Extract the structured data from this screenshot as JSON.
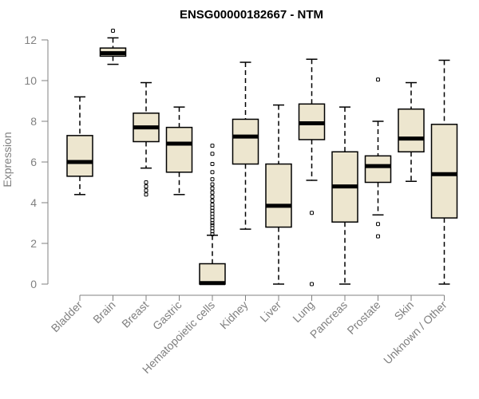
{
  "chart_data": {
    "type": "boxplot",
    "title": "ENSG00000182667 - NTM",
    "xlabel": "",
    "ylabel": "Expression",
    "ylim": [
      0,
      12.3
    ],
    "yticks": [
      "0",
      "2",
      "4",
      "6",
      "8",
      "10",
      "12"
    ],
    "colors": {
      "box_fill": "#ede6cf",
      "line": "#000000",
      "axis": "#808080"
    },
    "categories": [
      "Bladder",
      "Brain",
      "Breast",
      "Gastric",
      "Hematopoietic cells",
      "Kidney",
      "Liver",
      "Lung",
      "Pancreas",
      "Prostate",
      "Skin",
      "Unknown / Other"
    ],
    "boxes": [
      {
        "name": "Bladder",
        "min": 4.4,
        "q1": 5.3,
        "median": 6.0,
        "q3": 7.3,
        "max": 9.2,
        "outliers": []
      },
      {
        "name": "Brain",
        "min": 10.8,
        "q1": 11.2,
        "median": 11.35,
        "q3": 11.6,
        "max": 12.1,
        "outliers": [
          12.45
        ]
      },
      {
        "name": "Breast",
        "min": 5.7,
        "q1": 7.0,
        "median": 7.7,
        "q3": 8.4,
        "max": 9.9,
        "outliers": [
          4.4,
          4.6,
          4.8,
          5.0
        ]
      },
      {
        "name": "Gastric",
        "min": 4.4,
        "q1": 5.5,
        "median": 6.9,
        "q3": 7.7,
        "max": 8.7,
        "outliers": []
      },
      {
        "name": "Hematopoietic cells",
        "min": 0.0,
        "q1": 0.0,
        "median": 0.05,
        "q3": 1.0,
        "max": 2.4,
        "outliers": [
          2.45,
          2.6,
          2.75,
          2.9,
          3.0,
          3.15,
          3.3,
          3.45,
          3.6,
          3.75,
          3.9,
          4.1,
          4.3,
          4.5,
          4.7,
          4.9,
          5.15,
          5.5,
          5.9,
          6.4,
          6.8
        ]
      },
      {
        "name": "Kidney",
        "min": 2.7,
        "q1": 5.9,
        "median": 7.25,
        "q3": 8.1,
        "max": 10.9,
        "outliers": []
      },
      {
        "name": "Liver",
        "min": 0.0,
        "q1": 2.8,
        "median": 3.85,
        "q3": 5.9,
        "max": 8.8,
        "outliers": []
      },
      {
        "name": "Lung",
        "min": 5.1,
        "q1": 7.1,
        "median": 7.9,
        "q3": 8.85,
        "max": 11.05,
        "outliers": [
          3.5,
          0.0
        ]
      },
      {
        "name": "Pancreas",
        "min": 0.0,
        "q1": 3.05,
        "median": 4.8,
        "q3": 6.5,
        "max": 8.7,
        "outliers": []
      },
      {
        "name": "Prostate",
        "min": 3.4,
        "q1": 5.0,
        "median": 5.8,
        "q3": 6.3,
        "max": 8.0,
        "outliers": [
          10.05,
          2.95,
          2.35
        ]
      },
      {
        "name": "Skin",
        "min": 5.05,
        "q1": 6.5,
        "median": 7.15,
        "q3": 8.6,
        "max": 9.9,
        "outliers": []
      },
      {
        "name": "Unknown / Other",
        "min": 0.0,
        "q1": 3.25,
        "median": 5.4,
        "q3": 7.85,
        "max": 11.0,
        "outliers": []
      }
    ]
  }
}
